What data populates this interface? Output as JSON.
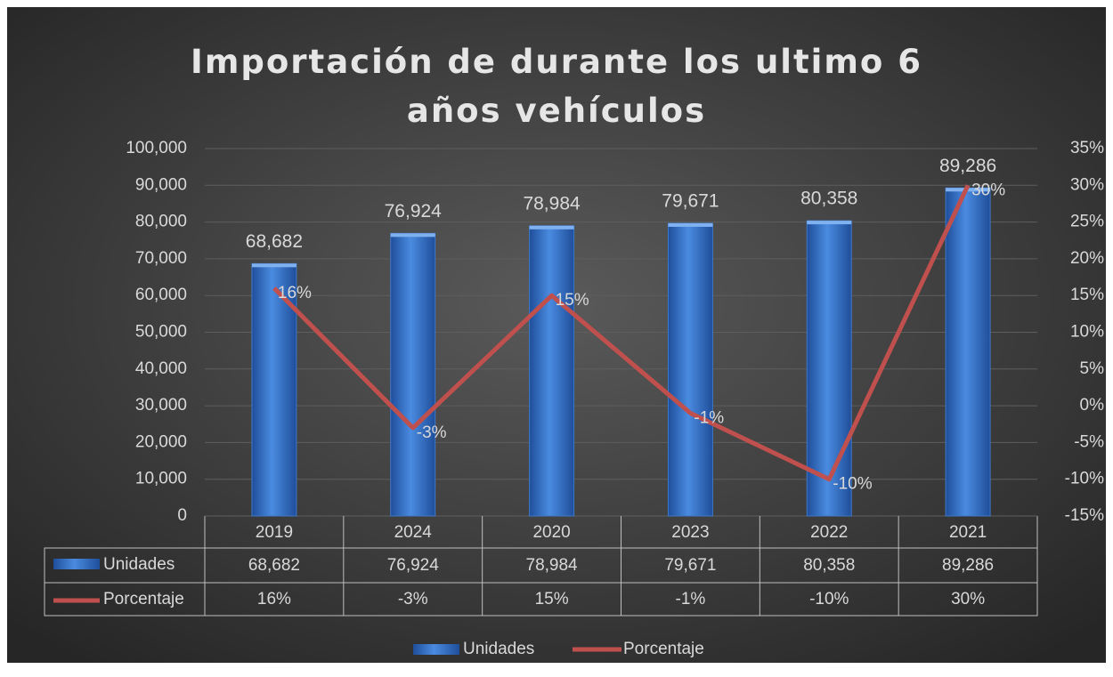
{
  "chart_data": {
    "type": "bar_line",
    "title": "Importación de durante los ultimo 6 años vehículos",
    "categories": [
      "2019",
      "2024",
      "2020",
      "2023",
      "2022",
      "2021"
    ],
    "series": [
      {
        "name": "Unidades",
        "type": "bar",
        "color": "#3f78c9",
        "values": [
          68682,
          76924,
          78984,
          79671,
          80358,
          89286
        ],
        "value_labels": [
          "68,682",
          "76,924",
          "78,984",
          "79,671",
          "80,358",
          "89,286"
        ]
      },
      {
        "name": "Porcentaje",
        "type": "line",
        "axis": "y2",
        "color": "#c0504d",
        "values": [
          16,
          -3,
          15,
          -1,
          -10,
          30
        ],
        "value_labels": [
          "16%",
          "-3%",
          "15%",
          "-1%",
          "-10%",
          "30%"
        ]
      }
    ],
    "ylim": [
      0,
      100000
    ],
    "yticks": [
      0,
      {
        "value": 10000,
        "label": "10,000"
      },
      {
        "value": 20000,
        "label": "20,000"
      },
      {
        "value": 30000,
        "label": "30,000"
      },
      {
        "value": 40000,
        "label": "40,000"
      },
      {
        "value": 50000,
        "label": "50,000"
      },
      {
        "value": 60000,
        "label": "60,000"
      },
      {
        "value": 70000,
        "label": "70,000"
      },
      {
        "value": 80000,
        "label": "80,000"
      },
      {
        "value": 90000,
        "label": "90,000"
      },
      {
        "value": 100000,
        "label": "100,000"
      }
    ],
    "y2lim": [
      -15,
      35
    ],
    "y2ticks": [
      {
        "value": -15,
        "label": "-15%"
      },
      {
        "value": -10,
        "label": "-10%"
      },
      {
        "value": -5,
        "label": "-5%"
      },
      {
        "value": 0,
        "label": "0%"
      },
      {
        "value": 5,
        "label": "5%"
      },
      {
        "value": 10,
        "label": "10%"
      },
      {
        "value": 15,
        "label": "15%"
      },
      {
        "value": 20,
        "label": "20%"
      },
      {
        "value": 25,
        "label": "25%"
      },
      {
        "value": 30,
        "label": "30%"
      },
      {
        "value": 35,
        "label": "35%"
      }
    ],
    "grid": true,
    "data_table": true,
    "legend": "bottom"
  }
}
